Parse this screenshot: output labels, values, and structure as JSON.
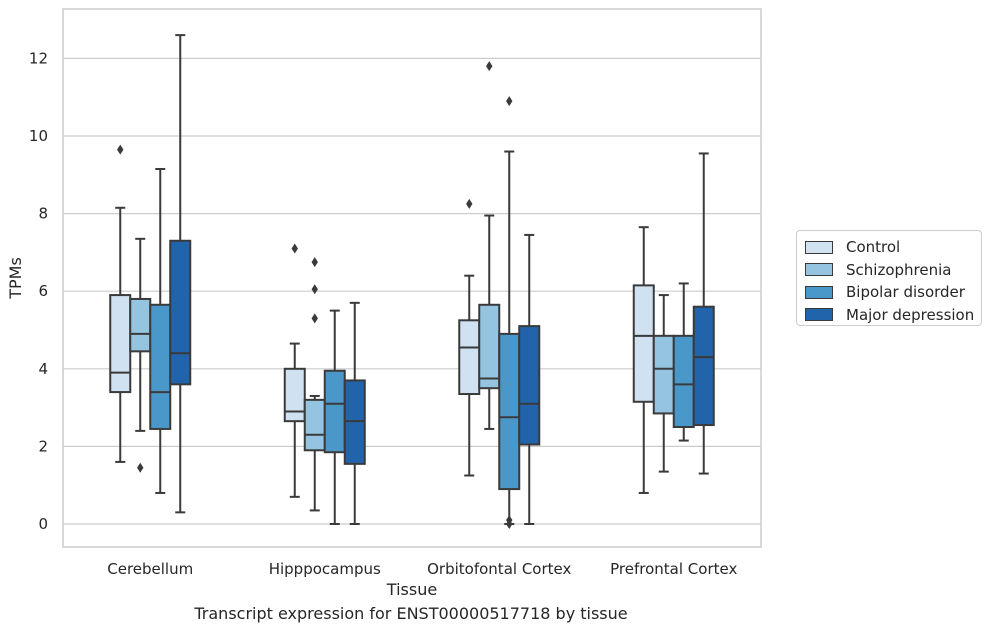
{
  "chart_data": {
    "type": "box",
    "caption": "Transcript expression for ENST00000517718 by tissue",
    "xlabel": "Tissue",
    "ylabel": "TPMs",
    "ylim": [
      -0.6,
      13.2
    ],
    "yticks": [
      0,
      2,
      4,
      6,
      8,
      10,
      12
    ],
    "grid": true,
    "legend_placement": "outside-right",
    "categories": [
      "Cerebellum",
      "Hipppocampus",
      "Orbitofontal Cortex",
      "Prefrontal Cortex"
    ],
    "series": [
      {
        "name": "Control",
        "color": "#d0e1f2",
        "boxes": [
          {
            "whislo": 1.6,
            "q1": 3.4,
            "med": 3.9,
            "q3": 5.9,
            "whishi": 8.15,
            "fliers": [
              9.65
            ]
          },
          {
            "whislo": 0.7,
            "q1": 2.65,
            "med": 2.9,
            "q3": 4.0,
            "whishi": 4.65,
            "fliers": [
              7.1
            ]
          },
          {
            "whislo": 1.25,
            "q1": 3.35,
            "med": 4.55,
            "q3": 5.25,
            "whishi": 6.4,
            "fliers": [
              8.25
            ]
          },
          {
            "whislo": 0.8,
            "q1": 3.15,
            "med": 4.85,
            "q3": 6.15,
            "whishi": 7.65,
            "fliers": []
          }
        ]
      },
      {
        "name": "Schizophrenia",
        "color": "#94c4df",
        "boxes": [
          {
            "whislo": 2.4,
            "q1": 4.45,
            "med": 4.9,
            "q3": 5.8,
            "whishi": 7.35,
            "fliers": [
              1.45
            ]
          },
          {
            "whislo": 0.35,
            "q1": 1.9,
            "med": 2.3,
            "q3": 3.2,
            "whishi": 3.3,
            "fliers": [
              5.3,
              6.05,
              6.75
            ]
          },
          {
            "whislo": 2.45,
            "q1": 3.5,
            "med": 3.75,
            "q3": 5.65,
            "whishi": 7.95,
            "fliers": [
              11.8
            ]
          },
          {
            "whislo": 1.35,
            "q1": 2.85,
            "med": 4.0,
            "q3": 4.85,
            "whishi": 5.9,
            "fliers": []
          }
        ]
      },
      {
        "name": "Bipolar disorder",
        "color": "#4a98c9",
        "boxes": [
          {
            "whislo": 0.8,
            "q1": 2.45,
            "med": 3.4,
            "q3": 5.65,
            "whishi": 9.15,
            "fliers": []
          },
          {
            "whislo": 0.0,
            "q1": 1.85,
            "med": 3.1,
            "q3": 3.95,
            "whishi": 5.5,
            "fliers": []
          },
          {
            "whislo": 0.0,
            "q1": 0.9,
            "med": 2.75,
            "q3": 4.9,
            "whishi": 9.6,
            "fliers": [
              10.9,
              0.1,
              0.0
            ]
          },
          {
            "whislo": 2.15,
            "q1": 2.5,
            "med": 3.6,
            "q3": 4.85,
            "whishi": 6.2,
            "fliers": []
          }
        ]
      },
      {
        "name": "Major depression",
        "color": "#2164ab",
        "boxes": [
          {
            "whislo": 0.3,
            "q1": 3.6,
            "med": 4.4,
            "q3": 7.3,
            "whishi": 12.6,
            "fliers": []
          },
          {
            "whislo": 0.0,
            "q1": 1.55,
            "med": 2.65,
            "q3": 3.7,
            "whishi": 5.7,
            "fliers": []
          },
          {
            "whislo": 0.0,
            "q1": 2.05,
            "med": 3.1,
            "q3": 5.1,
            "whishi": 7.45,
            "fliers": []
          },
          {
            "whislo": 1.3,
            "q1": 2.55,
            "med": 4.3,
            "q3": 5.6,
            "whishi": 9.55,
            "fliers": []
          }
        ]
      }
    ]
  }
}
